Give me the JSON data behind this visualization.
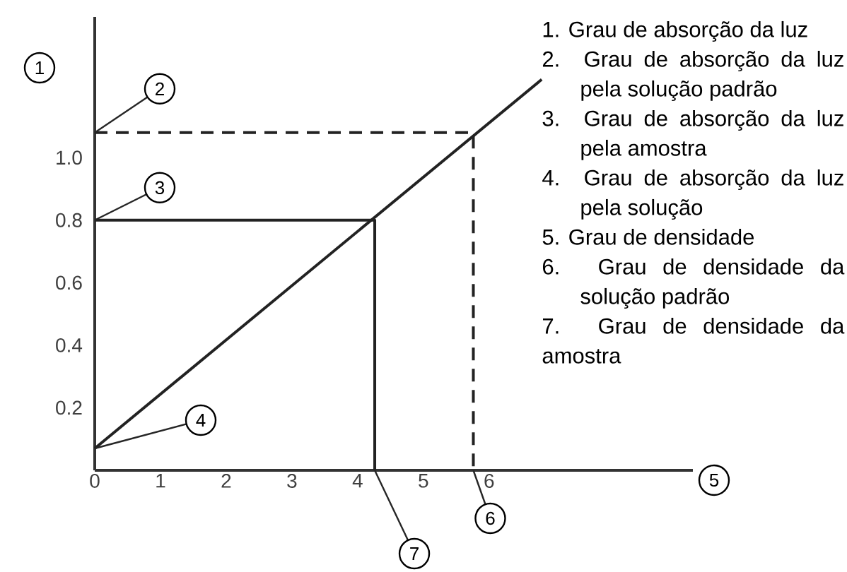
{
  "chart_data": {
    "type": "line",
    "xlabel": "5",
    "ylabel": "1",
    "xlim": [
      0,
      9.1
    ],
    "ylim": [
      0,
      1.45
    ],
    "xticks": [
      0,
      1,
      2,
      3,
      4,
      5,
      6
    ],
    "yticks": [
      0.2,
      0.4,
      0.6,
      0.8,
      {
        "value": 1.0,
        "label": "1.0"
      }
    ],
    "series": [
      {
        "x": [
          0,
          6.8
        ],
        "values": [
          0.07,
          1.25
        ],
        "color": "#222222"
      },
      {
        "x": [
          0,
          4.26,
          4.26
        ],
        "values": [
          0.8,
          0.8,
          0
        ],
        "color": "#222222"
      },
      {
        "x": [
          0,
          5.76,
          5.76
        ],
        "values": [
          1.08,
          1.08,
          0
        ],
        "color": "#222222",
        "line_style": "dashed"
      }
    ],
    "annotations": [
      {
        "text": "2",
        "x": 0,
        "y": 1.08
      },
      {
        "text": "3",
        "x": 0,
        "y": 0.8
      },
      {
        "text": "4",
        "x": 0,
        "y": 0.07
      },
      {
        "text": "6",
        "x": 5.76,
        "y": 0
      },
      {
        "text": "7",
        "x": 4.26,
        "y": 0
      },
      "1. Grau de absorção da luz",
      "2. Grau de absorção da luz pela solução padrão",
      "3. Grau de absorção da luz pela amostra",
      "4. Grau de absorção da luz pela solução",
      "5. Grau de densidade",
      "6. Grau de densidade da solução padrão",
      "7. Grau de densidade da amostra"
    ]
  }
}
